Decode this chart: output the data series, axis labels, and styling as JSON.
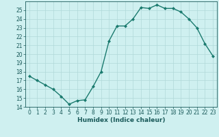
{
  "x": [
    0,
    1,
    2,
    3,
    4,
    5,
    6,
    7,
    8,
    9,
    10,
    11,
    12,
    13,
    14,
    15,
    16,
    17,
    18,
    19,
    20,
    21,
    22,
    23
  ],
  "y": [
    17.5,
    17.0,
    16.5,
    16.0,
    15.2,
    14.3,
    14.7,
    14.8,
    16.3,
    18.0,
    21.5,
    23.2,
    23.2,
    24.0,
    25.3,
    25.2,
    25.6,
    25.2,
    25.2,
    24.8,
    24.0,
    23.0,
    21.2,
    19.8
  ],
  "line_color": "#1a7a6e",
  "marker": "D",
  "markersize": 2.0,
  "linewidth": 1.0,
  "bg_color": "#cff0f0",
  "grid_color": "#b0d8d8",
  "xlabel": "Humidex (Indice chaleur)",
  "ylim": [
    14,
    26
  ],
  "yticks": [
    14,
    15,
    16,
    17,
    18,
    19,
    20,
    21,
    22,
    23,
    24,
    25
  ],
  "xlim": [
    -0.5,
    23.5
  ],
  "xticks": [
    0,
    1,
    2,
    3,
    4,
    5,
    6,
    7,
    8,
    9,
    10,
    11,
    12,
    13,
    14,
    15,
    16,
    17,
    18,
    19,
    20,
    21,
    22,
    23
  ],
  "tick_color": "#1a5a5a",
  "label_fontsize": 5.5,
  "xlabel_fontsize": 6.5
}
